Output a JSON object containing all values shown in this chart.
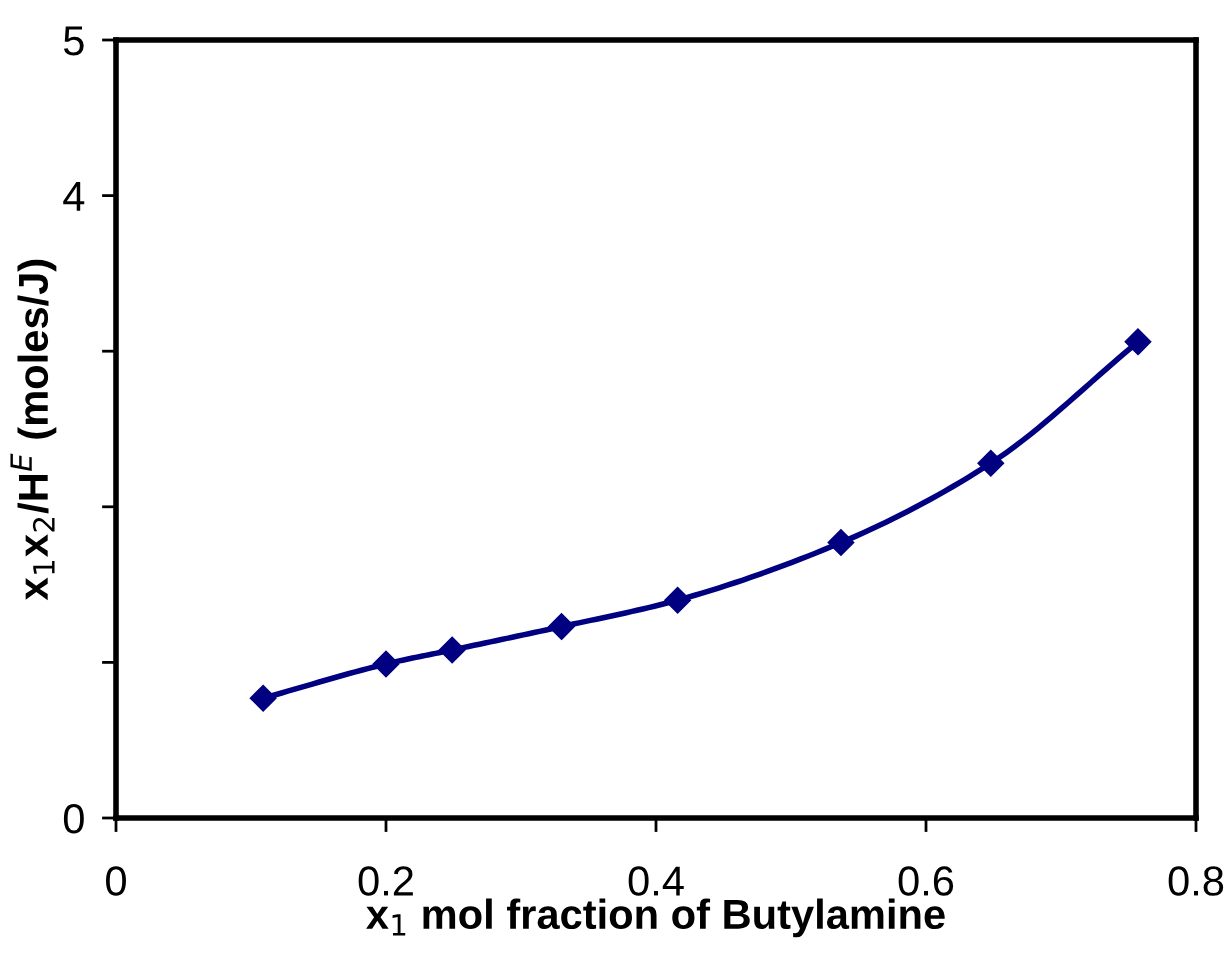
{
  "chart_data": {
    "type": "line",
    "xlabel": "x$_{1}$ mol fraction of Butylamine",
    "ylabel": "x$_{1}$x$_{2}$/H$^{E}$ (moles/J)",
    "x": [
      0.109,
      0.2,
      0.249,
      0.33,
      0.416,
      0.537,
      0.648,
      0.757
    ],
    "series": [
      {
        "color": "#000080",
        "values": [
          0.77,
          0.99,
          1.08,
          1.23,
          1.4,
          1.77,
          2.28,
          3.06
        ]
      }
    ],
    "xlim": [
      0,
      0.8
    ],
    "xticks": [
      0,
      0.2,
      0.4,
      0.6,
      0.8
    ],
    "ylim": [
      0,
      5
    ],
    "yticks": [
      0,
      {
        "value": 1,
        "label": null
      },
      {
        "value": 2,
        "label": null
      },
      {
        "value": 3,
        "label": null
      },
      4,
      5
    ],
    "grid": false,
    "legend": false,
    "marker": "diamond",
    "line_style": "solid"
  }
}
